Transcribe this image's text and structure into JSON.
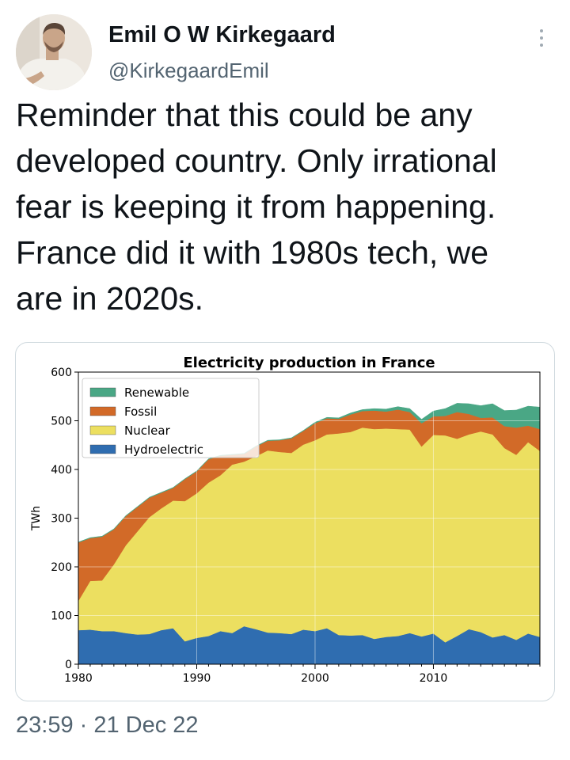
{
  "author": {
    "name": "Emil O W Kirkegaard",
    "handle": "@KirkegaardEmil"
  },
  "tweet": {
    "text": "Reminder that this could be any\ndeveloped country. Only irrational\nfear is keeping it from happening.\nFrance did it with 1980s tech, we\nare in 2020s.",
    "timestamp": "23:59 · 21 Dec 22"
  },
  "icons": {
    "more": "more-vertical-icon"
  },
  "chart_data": {
    "type": "area",
    "stacked": true,
    "title": "Electricity production in France",
    "xlabel": "",
    "ylabel": "TWh",
    "xlim": [
      1980,
      2019
    ],
    "ylim": [
      0,
      600
    ],
    "x": [
      1980,
      1981,
      1982,
      1983,
      1984,
      1985,
      1986,
      1987,
      1988,
      1989,
      1990,
      1991,
      1992,
      1993,
      1994,
      1995,
      1996,
      1997,
      1998,
      1999,
      2000,
      2001,
      2002,
      2003,
      2004,
      2005,
      2006,
      2007,
      2008,
      2009,
      2010,
      2011,
      2012,
      2013,
      2014,
      2015,
      2016,
      2017,
      2018,
      2019
    ],
    "xticks": [
      1980,
      1990,
      2000,
      2010
    ],
    "yticks": [
      0,
      100,
      200,
      300,
      400,
      500,
      600
    ],
    "grid": true,
    "legend_position": "top-left",
    "series": [
      {
        "name": "Hydroelectric",
        "color": "#2f6db0",
        "values": [
          70,
          71,
          68,
          68,
          64,
          61,
          62,
          70,
          74,
          47,
          54,
          58,
          68,
          64,
          78,
          72,
          65,
          64,
          62,
          71,
          68,
          74,
          60,
          59,
          60,
          52,
          56,
          58,
          64,
          57,
          63,
          45,
          58,
          72,
          66,
          55,
          60,
          50,
          63,
          56
        ]
      },
      {
        "name": "Nuclear",
        "color": "#ecdf60",
        "values": [
          60,
          100,
          104,
          137,
          180,
          212,
          240,
          250,
          262,
          288,
          297,
          315,
          320,
          346,
          338,
          355,
          374,
          372,
          372,
          380,
          392,
          398,
          414,
          418,
          426,
          431,
          428,
          425,
          418,
          390,
          408,
          425,
          405,
          400,
          412,
          417,
          384,
          380,
          393,
          382
        ]
      },
      {
        "name": "Fossil",
        "color": "#d26a28",
        "values": [
          120,
          88,
          90,
          72,
          60,
          50,
          40,
          32,
          26,
          45,
          45,
          48,
          40,
          20,
          16,
          20,
          20,
          24,
          30,
          28,
          35,
          33,
          30,
          36,
          34,
          38,
          35,
          40,
          36,
          48,
          38,
          40,
          55,
          42,
          28,
          35,
          45,
          56,
          34,
          45
        ]
      },
      {
        "name": "Renewable",
        "color": "#4aa785",
        "values": [
          1,
          1,
          1,
          1,
          1,
          1,
          1,
          1,
          1,
          1,
          1,
          1,
          1,
          1,
          1,
          1,
          1,
          1,
          1,
          1,
          2,
          2,
          2,
          3,
          3,
          4,
          5,
          6,
          7,
          8,
          11,
          15,
          18,
          21,
          25,
          28,
          32,
          36,
          40,
          45
        ]
      }
    ]
  }
}
